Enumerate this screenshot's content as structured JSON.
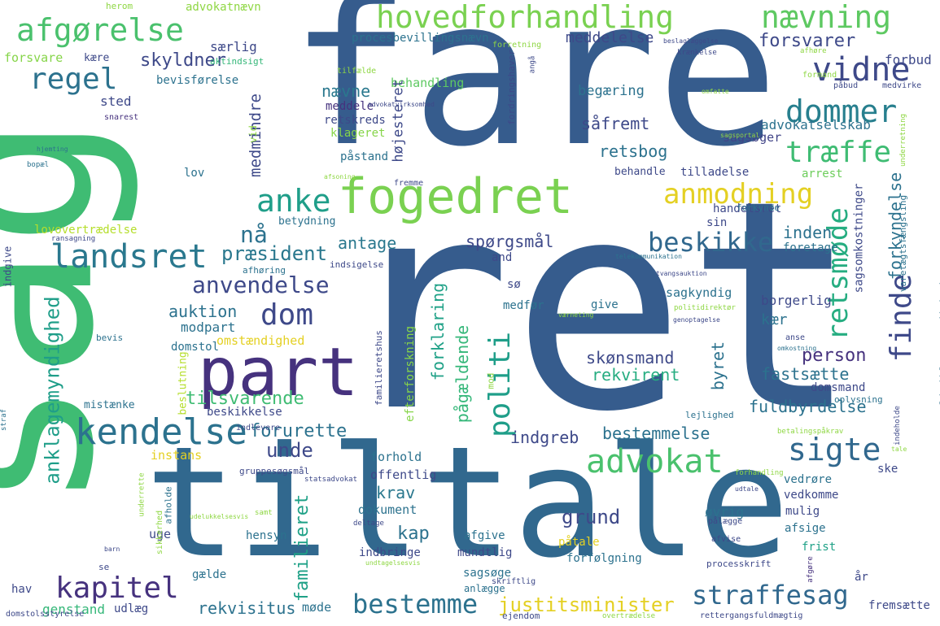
{
  "palette": {
    "dark_purple": "#46327e",
    "blue": "#365c8d",
    "steel": "#277f8e",
    "teal": "#1fa187",
    "green": "#4ac16d",
    "lime": "#a0da39",
    "yellow": "#e4d023",
    "deep": "#440154"
  },
  "words": [
    {
      "text": "ret",
      "color": "#365c8d"
    },
    {
      "text": "fare",
      "color": "#365c8d"
    },
    {
      "text": "sag",
      "color": "#3fbc73"
    },
    {
      "text": "tiltale",
      "color": "#31688e"
    },
    {
      "text": "part",
      "color": "#46327e"
    },
    {
      "text": "fogedret",
      "color": "#7ad151"
    },
    {
      "text": "afgørelse",
      "color": "#4ac16d"
    },
    {
      "text": "hovedforhandling",
      "color": "#7ad151"
    },
    {
      "text": "nævning",
      "color": "#5ec962"
    },
    {
      "text": "vidne",
      "color": "#3e4989"
    },
    {
      "text": "dommer",
      "color": "#277f8e"
    },
    {
      "text": "regel",
      "color": "#2c728e"
    },
    {
      "text": "træffe",
      "color": "#3fbc73"
    },
    {
      "text": "anke",
      "color": "#1f9e89"
    },
    {
      "text": "anmodning",
      "color": "#e4d023"
    },
    {
      "text": "landsret",
      "color": "#2a788e"
    },
    {
      "text": "retsmøde",
      "color": "#26ad81"
    },
    {
      "text": "finde",
      "color": "#3e4989"
    },
    {
      "text": "beskikke",
      "color": "#31688e"
    },
    {
      "text": "anvendelse",
      "color": "#3e4989"
    },
    {
      "text": "dom",
      "color": "#3e4989"
    },
    {
      "text": "kendelse",
      "color": "#2c728e"
    },
    {
      "text": "sigte",
      "color": "#31688e"
    },
    {
      "text": "advokat",
      "color": "#4ac16d"
    },
    {
      "text": "politi",
      "color": "#1f9e89"
    },
    {
      "text": "kapitel",
      "color": "#46327e"
    },
    {
      "text": "bestemme",
      "color": "#2c728e"
    },
    {
      "text": "straffesag",
      "color": "#31688e"
    },
    {
      "text": "justitsminister",
      "color": "#e4d023"
    },
    {
      "text": "forsvarer",
      "color": "#3e4989"
    },
    {
      "text": "skyldner",
      "color": "#3e4989"
    },
    {
      "text": "person",
      "color": "#46327e"
    },
    {
      "text": "sted",
      "color": "#3e4989"
    },
    {
      "text": "særlig",
      "color": "#3e4989"
    },
    {
      "text": "nævne",
      "color": "#2a788e"
    },
    {
      "text": "meddelelse",
      "color": "#3e4989"
    },
    {
      "text": "forbud",
      "color": "#3e4989"
    },
    {
      "text": "forsvare",
      "color": "#86d549"
    },
    {
      "text": "kære",
      "color": "#3e4989"
    },
    {
      "text": "bevisførelse",
      "color": "#2c728e"
    },
    {
      "text": "procesbevillingsnævn",
      "color": "#2c728e"
    },
    {
      "text": "herom",
      "color": "#8fd744"
    },
    {
      "text": "advokatnævn",
      "color": "#8fd744"
    },
    {
      "text": "aktindsigt",
      "color": "#35b779"
    },
    {
      "text": "behandling",
      "color": "#5ec962"
    },
    {
      "text": "begæring",
      "color": "#2c728e"
    },
    {
      "text": "såfremt",
      "color": "#3e4989"
    },
    {
      "text": "advokatselskab",
      "color": "#2c728e"
    },
    {
      "text": "sagsøger",
      "color": "#414487"
    },
    {
      "text": "retsbog",
      "color": "#2c728e"
    },
    {
      "text": "højesteret",
      "color": "#3e4989"
    },
    {
      "text": "medmindre",
      "color": "#3e4989"
    },
    {
      "text": "retskreds",
      "color": "#3e4989"
    },
    {
      "text": "klageret",
      "color": "#86d549"
    },
    {
      "text": "påstand",
      "color": "#2c728e"
    },
    {
      "text": "meddele",
      "color": "#46327e"
    },
    {
      "text": "tilladelse",
      "color": "#3e4989"
    },
    {
      "text": "behandle",
      "color": "#3e4989"
    },
    {
      "text": "arrest",
      "color": "#6ccd5a"
    },
    {
      "text": "forkyndelse",
      "color": "#2c728e"
    },
    {
      "text": "handelsret",
      "color": "#3e4989"
    },
    {
      "text": "inden",
      "color": "#2c728e"
    },
    {
      "text": "forkynde",
      "color": "#2c728e"
    },
    {
      "text": "sin",
      "color": "#3e4989"
    },
    {
      "text": "foretage",
      "color": "#2c728e"
    },
    {
      "text": "nå",
      "color": "#2c728e"
    },
    {
      "text": "præsident",
      "color": "#2a788e"
    },
    {
      "text": "antage",
      "color": "#2a788e"
    },
    {
      "text": "spørgsmål",
      "color": "#3e4989"
    },
    {
      "text": "lov",
      "color": "#2c728e"
    },
    {
      "text": "lovovertrædelse",
      "color": "#b5de2b"
    },
    {
      "text": "betydning",
      "color": "#2c728e"
    },
    {
      "text": "auktion",
      "color": "#2c728e"
    },
    {
      "text": "modpart",
      "color": "#2c728e"
    },
    {
      "text": "omstændighed",
      "color": "#e4d023"
    },
    {
      "text": "anklagemyndighed",
      "color": "#1f9e89"
    },
    {
      "text": "tilsvarende",
      "color": "#3fbc73"
    },
    {
      "text": "forurette",
      "color": "#2c728e"
    },
    {
      "text": "beskikkelse",
      "color": "#3e4989"
    },
    {
      "text": "beslutning",
      "color": "#b5de2b"
    },
    {
      "text": "mistænke",
      "color": "#2c728e"
    },
    {
      "text": "unde",
      "color": "#3e4989"
    },
    {
      "text": "instans",
      "color": "#e4d023"
    },
    {
      "text": "forklaring",
      "color": "#1fa187"
    },
    {
      "text": "pågældende",
      "color": "#35b779"
    },
    {
      "text": "efterforskning",
      "color": "#86d549"
    },
    {
      "text": "krav",
      "color": "#2a788e"
    },
    {
      "text": "kap",
      "color": "#2c728e"
    },
    {
      "text": "familieret",
      "color": "#1fa187"
    },
    {
      "text": "grund",
      "color": "#3e4989"
    },
    {
      "text": "indgreb",
      "color": "#3e4989"
    },
    {
      "text": "rekvirent",
      "color": "#26ad81"
    },
    {
      "text": "skønsmand",
      "color": "#3e4989"
    },
    {
      "text": "byret",
      "color": "#2c728e"
    },
    {
      "text": "bestemmelse",
      "color": "#2c728e"
    },
    {
      "text": "fastsætte",
      "color": "#2c728e"
    },
    {
      "text": "kær",
      "color": "#2c728e"
    },
    {
      "text": "borgerlig",
      "color": "#3e4989"
    },
    {
      "text": "sagkyndig",
      "color": "#2c728e"
    },
    {
      "text": "sagsomkostninger",
      "color": "#3e4989"
    },
    {
      "text": "varetægtsfængsling",
      "color": "#2c728e"
    },
    {
      "text": "politiklagemyndighed",
      "color": "#2c728e"
    },
    {
      "text": "domsmand",
      "color": "#3e4989"
    },
    {
      "text": "oplysning",
      "color": "#2c728e"
    },
    {
      "text": "lejlighed",
      "color": "#2c728e"
    },
    {
      "text": "fuldbyrdelse",
      "color": "#2c728e"
    },
    {
      "text": "ske",
      "color": "#3e4989"
    },
    {
      "text": "vedrøre",
      "color": "#2c728e"
    },
    {
      "text": "vedkomme",
      "color": "#3e4989"
    },
    {
      "text": "øvrig",
      "color": "#2c728e"
    },
    {
      "text": "mulig",
      "color": "#3e4989"
    },
    {
      "text": "afsige",
      "color": "#2c728e"
    },
    {
      "text": "frist",
      "color": "#1fa187"
    },
    {
      "text": "år",
      "color": "#3e4989"
    },
    {
      "text": "fremsætte",
      "color": "#3e4989"
    },
    {
      "text": "genstand",
      "color": "#35b779"
    },
    {
      "text": "udlæg",
      "color": "#3e4989"
    },
    {
      "text": "rekvisitus",
      "color": "#2c728e"
    },
    {
      "text": "møde",
      "color": "#2c728e"
    },
    {
      "text": "afgive",
      "color": "#2c728e"
    },
    {
      "text": "mundtlig",
      "color": "#3e4989"
    },
    {
      "text": "sagsøge",
      "color": "#2c728e"
    },
    {
      "text": "indbringe",
      "color": "#3e4989"
    },
    {
      "text": "anlægge",
      "color": "#2c728e"
    },
    {
      "text": "forfølgning",
      "color": "#2c728e"
    },
    {
      "text": "påtale",
      "color": "#e4d023"
    },
    {
      "text": "dokument",
      "color": "#2c728e"
    },
    {
      "text": "offentlig",
      "color": "#3e4989"
    },
    {
      "text": "forhold",
      "color": "#2c728e"
    },
    {
      "text": "hensyn",
      "color": "#2c728e"
    },
    {
      "text": "uge",
      "color": "#3e4989"
    },
    {
      "text": "se",
      "color": "#3e4989"
    },
    {
      "text": "hav",
      "color": "#3e4989"
    },
    {
      "text": "gælde",
      "color": "#2c728e"
    },
    {
      "text": "sø",
      "color": "#3e4989"
    },
    {
      "text": "medfør",
      "color": "#2c728e"
    },
    {
      "text": "give",
      "color": "#2c728e"
    },
    {
      "text": "and",
      "color": "#3e4989"
    },
    {
      "text": "domstol",
      "color": "#2c728e"
    },
    {
      "text": "bevis",
      "color": "#2c728e"
    },
    {
      "text": "indgive",
      "color": "#3e4989"
    },
    {
      "text": "afhøring",
      "color": "#2c728e"
    },
    {
      "text": "ransagning",
      "color": "#3e4989"
    },
    {
      "text": "indsigelse",
      "color": "#3e4989"
    },
    {
      "text": "bopæl",
      "color": "#2c728e"
    },
    {
      "text": "hjemting",
      "color": "#2c728e"
    },
    {
      "text": "snarest",
      "color": "#46327e"
    },
    {
      "text": "vid",
      "color": "#8fd744"
    },
    {
      "text": "forretning",
      "color": "#8fd744"
    },
    {
      "text": "tilfælde",
      "color": "#8fd744"
    },
    {
      "text": "afhøre",
      "color": "#8fd744"
    },
    {
      "text": "formand",
      "color": "#8fd744"
    },
    {
      "text": "påbud",
      "color": "#3e4989"
    },
    {
      "text": "medvirke",
      "color": "#3e4989"
    },
    {
      "text": "omfatte",
      "color": "#8fd744"
    },
    {
      "text": "sagsportal",
      "color": "#8fd744"
    },
    {
      "text": "underretning",
      "color": "#8fd744"
    },
    {
      "text": "beslaglæggelse",
      "color": "#3e4989"
    },
    {
      "text": "krænkelse",
      "color": "#3e4989"
    },
    {
      "text": "angå",
      "color": "#3e4989"
    },
    {
      "text": "fordringshaver",
      "color": "#3e4989"
    },
    {
      "text": "advokatvirksomhed",
      "color": "#3e4989"
    },
    {
      "text": "afsoning",
      "color": "#8fd744"
    },
    {
      "text": "fremme",
      "color": "#3e4989"
    },
    {
      "text": "telekommunikation",
      "color": "#2c728e"
    },
    {
      "text": "tvangsauktion",
      "color": "#3e4989"
    },
    {
      "text": "værneting",
      "color": "#8fd744"
    },
    {
      "text": "politidirektør",
      "color": "#8fd744"
    },
    {
      "text": "genoptagelse",
      "color": "#3e4989"
    },
    {
      "text": "anse",
      "color": "#3e4989"
    },
    {
      "text": "omkostning",
      "color": "#2c728e"
    },
    {
      "text": "mod",
      "color": "#8fd744"
    },
    {
      "text": "familieretshus",
      "color": "#3e4989"
    },
    {
      "text": "indlevere",
      "color": "#3e4989"
    },
    {
      "text": "gruppesøgsmål",
      "color": "#3e4989"
    },
    {
      "text": "statsadvokat",
      "color": "#3e4989"
    },
    {
      "text": "forhandling",
      "color": "#8fd744"
    },
    {
      "text": "udtale",
      "color": "#3e4989"
    },
    {
      "text": "indeholde",
      "color": "#3e4989"
    },
    {
      "text": "betalingspåkrav",
      "color": "#8fd744"
    },
    {
      "text": "tale",
      "color": "#8fd744"
    },
    {
      "text": "underrette",
      "color": "#8fd744"
    },
    {
      "text": "afholde",
      "color": "#2c728e"
    },
    {
      "text": "udelukkelsesvis",
      "color": "#8fd744"
    },
    {
      "text": "samt",
      "color": "#8fd744"
    },
    {
      "text": "deltage",
      "color": "#3e4989"
    },
    {
      "text": "pålægge",
      "color": "#3e4989"
    },
    {
      "text": "afvise",
      "color": "#3e4989"
    },
    {
      "text": "barn",
      "color": "#3e4989"
    },
    {
      "text": "sikkerhed",
      "color": "#8fd744"
    },
    {
      "text": "undtagelsesvis",
      "color": "#8fd744"
    },
    {
      "text": "processkrift",
      "color": "#3e4989"
    },
    {
      "text": "afgøre",
      "color": "#46327e"
    },
    {
      "text": "skriftlig",
      "color": "#3e4989"
    },
    {
      "text": "ejendom",
      "color": "#3e4989"
    },
    {
      "text": "overtrædelse",
      "color": "#8fd744"
    },
    {
      "text": "rettergangsfuldmægtig",
      "color": "#3e4989"
    },
    {
      "text": "domstolsstyrelse",
      "color": "#3e4989"
    },
    {
      "text": "straf",
      "color": "#2c728e"
    },
    {
      "text": "edvidere",
      "color": "#8fd744"
    }
  ]
}
